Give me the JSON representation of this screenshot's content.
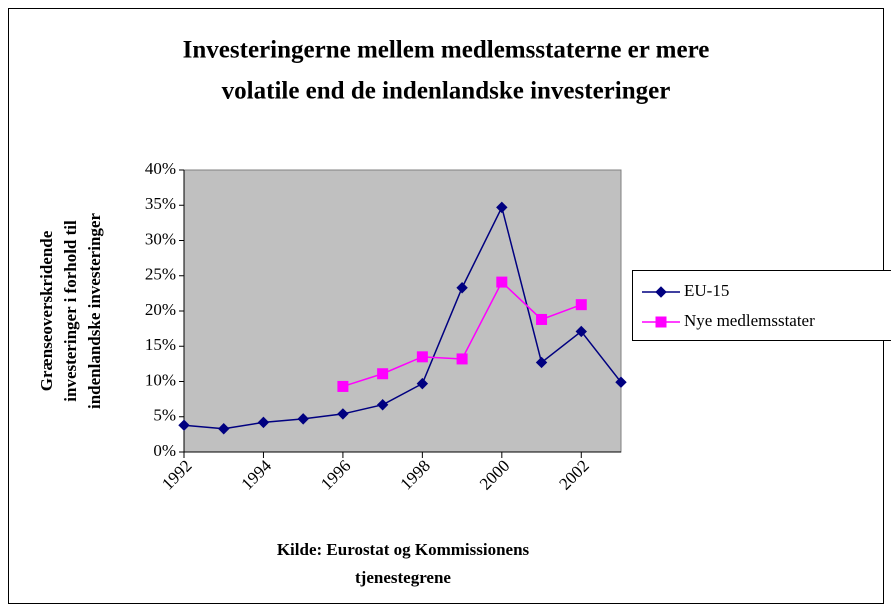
{
  "chart_data": {
    "type": "line",
    "title": [
      "Investeringerne mellem medlemsstaterne er mere",
      "volatile end de indenlandske investeringer"
    ],
    "ylabel": [
      "Grænseoverskridende",
      "investeringer i forhold til",
      "indenlandske investeringer"
    ],
    "source": [
      "Kilde: Eurostat og Kommissionens",
      "tjenestegrene"
    ],
    "x": [
      1992,
      1993,
      1994,
      1995,
      1996,
      1997,
      1998,
      1999,
      2000,
      2001,
      2002,
      2003
    ],
    "series": [
      {
        "name": "EU-15",
        "color": "#000080",
        "marker": "diamond",
        "values": [
          3.8,
          3.3,
          4.2,
          4.7,
          5.4,
          6.7,
          9.7,
          23.3,
          34.7,
          12.7,
          17.1,
          9.9
        ]
      },
      {
        "name": "Nye medlemsstater",
        "color": "#ff00ff",
        "marker": "square",
        "values": [
          null,
          null,
          null,
          null,
          9.3,
          11.1,
          13.5,
          13.2,
          24.1,
          18.8,
          20.9,
          null
        ]
      }
    ],
    "xlim": [
      1992,
      2003
    ],
    "xticks": [
      1992,
      1994,
      1996,
      1998,
      2000,
      2002
    ],
    "ylim": [
      0,
      40
    ],
    "yticks": [
      {
        "value": 0,
        "label": "0%"
      },
      {
        "value": 5,
        "label": "5%"
      },
      {
        "value": 10,
        "label": "10%"
      },
      {
        "value": 15,
        "label": "15%"
      },
      {
        "value": 20,
        "label": "20%"
      },
      {
        "value": 25,
        "label": "25%"
      },
      {
        "value": 30,
        "label": "30%"
      },
      {
        "value": 35,
        "label": "35%"
      },
      {
        "value": 40,
        "label": "40%"
      }
    ],
    "legend": "right"
  }
}
